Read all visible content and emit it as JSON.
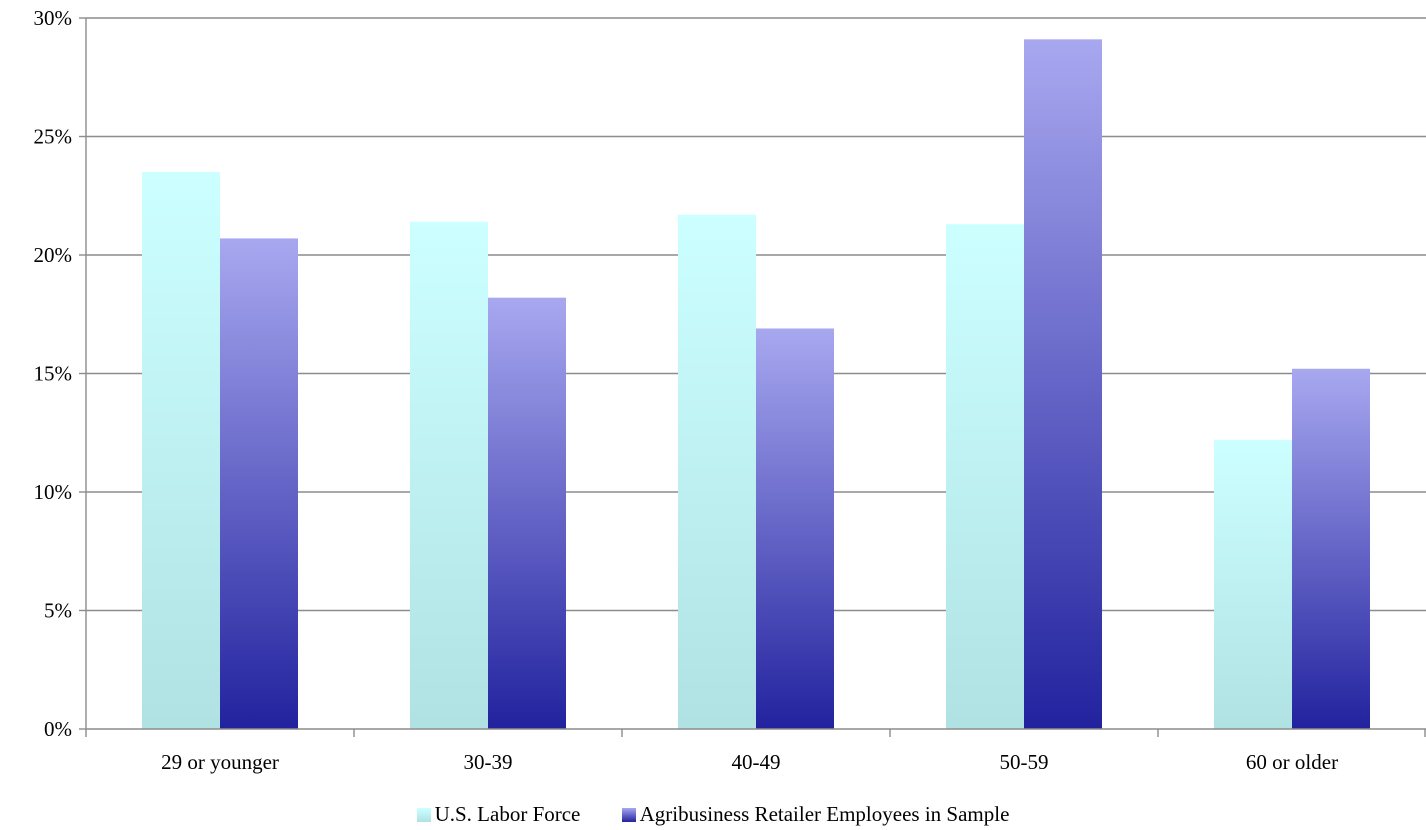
{
  "chart_data": {
    "type": "bar",
    "categories": [
      "29 or younger",
      "30-39",
      "40-49",
      "50-59",
      "60 or older"
    ],
    "series": [
      {
        "name": "U.S. Labor Force",
        "values": [
          23.5,
          21.4,
          21.7,
          21.3,
          12.2
        ],
        "color_top": "#ccffff",
        "color_bottom": "#b0e2e4"
      },
      {
        "name": "Agribusiness Retailer Employees in Sample",
        "values": [
          20.7,
          18.2,
          16.9,
          29.1,
          15.2
        ],
        "color_top": "#a8a8f0",
        "color_bottom": "#22229e"
      }
    ],
    "y_tick_labels": [
      "0%",
      "5%",
      "10%",
      "15%",
      "20%",
      "25%",
      "30%"
    ],
    "ylim": [
      0,
      30
    ],
    "y_tick_step": 5,
    "grid": true,
    "legend_position": "bottom"
  },
  "legend": {
    "items": [
      "U.S. Labor Force",
      "Agribusiness Retailer Employees in Sample"
    ]
  }
}
